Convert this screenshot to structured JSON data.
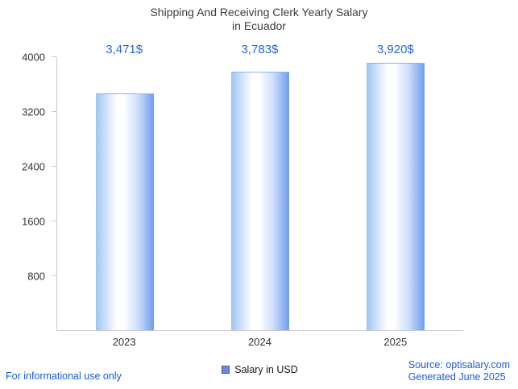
{
  "title": {
    "line1": "Shipping And Receiving Clerk Yearly Salary",
    "line2": "in Ecuador"
  },
  "chart_data": {
    "type": "bar",
    "title": "Shipping And Receiving Clerk Yearly Salary in Ecuador",
    "categories": [
      "2023",
      "2024",
      "2025"
    ],
    "values": [
      3471,
      3783,
      3920
    ],
    "value_labels": [
      "3,471$",
      "3,783$",
      "3,920$"
    ],
    "xlabel": "",
    "ylabel": "",
    "ylim": [
      0,
      4000
    ],
    "yticks": [
      800,
      1600,
      2400,
      3200,
      4000
    ],
    "grid": false,
    "legend": [
      {
        "label": "Salary in USD",
        "color": "#6d87dd",
        "position": "bottom"
      }
    ]
  },
  "footer": {
    "disclaimer": "For informational use only",
    "source": "Source: optisalary.com",
    "generated": "Generated June 2025"
  },
  "colors": {
    "accent-blue": "#2767d9",
    "link-blue": "#1b5ad6",
    "title-gray": "#3c3c3c",
    "axis-gray": "#c9c9c9",
    "tick-text": "#333333",
    "bar-left": "#9ec4f5",
    "bar-mid": "#ffffff",
    "bar-right": "#6f9cee",
    "bar-top-edge": "#8fb2ee",
    "legend-border": "#44549c"
  }
}
